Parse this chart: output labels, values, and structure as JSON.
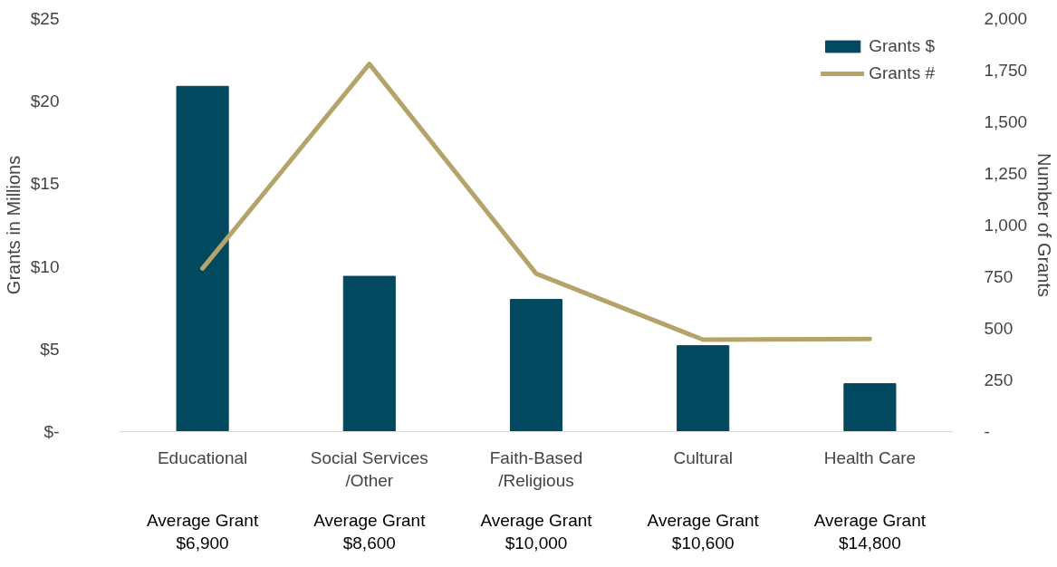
{
  "chart_data": {
    "type": "bar",
    "categories": [
      "Educational",
      "Social Services\n/Other",
      "Faith-Based\n/Religious",
      "Cultural",
      "Health Care"
    ],
    "series": [
      {
        "name": "Grants $",
        "color": "#02485e",
        "values": [
          20.9,
          9.4,
          8.0,
          5.2,
          2.9
        ]
      },
      {
        "name": "Grants #",
        "type": "line",
        "axis": "y2",
        "color": "#b5a46a",
        "values": [
          790,
          1780,
          765,
          445,
          448
        ]
      }
    ],
    "ylabel": "Grants in Millions",
    "y2label": "Number of Grants",
    "ylim": [
      0,
      25
    ],
    "yticks": [
      {
        "value": 0,
        "label": "$-"
      },
      {
        "value": 5,
        "label": "$5"
      },
      {
        "value": 10,
        "label": "$10"
      },
      {
        "value": 15,
        "label": "$15"
      },
      {
        "value": 20,
        "label": "$20"
      },
      {
        "value": 25,
        "label": "$25"
      }
    ],
    "y2lim": [
      0,
      2000
    ],
    "y2ticks": [
      {
        "value": 0,
        "label": "-"
      },
      250,
      500,
      750,
      {
        "value": 1000,
        "label": "1,000"
      },
      {
        "value": 1250,
        "label": "1,250"
      },
      {
        "value": 1500,
        "label": "1,500"
      },
      {
        "value": 1750,
        "label": "1,750"
      },
      {
        "value": 2000,
        "label": "2,000"
      }
    ],
    "annotations": [
      "Average Grant\n$6,900",
      "Average Grant\n$8,600",
      "Average Grant\n$10,000",
      "Average Grant\n$10,600",
      "Average Grant\n$14,800"
    ],
    "legend": "top right",
    "grid": false
  }
}
